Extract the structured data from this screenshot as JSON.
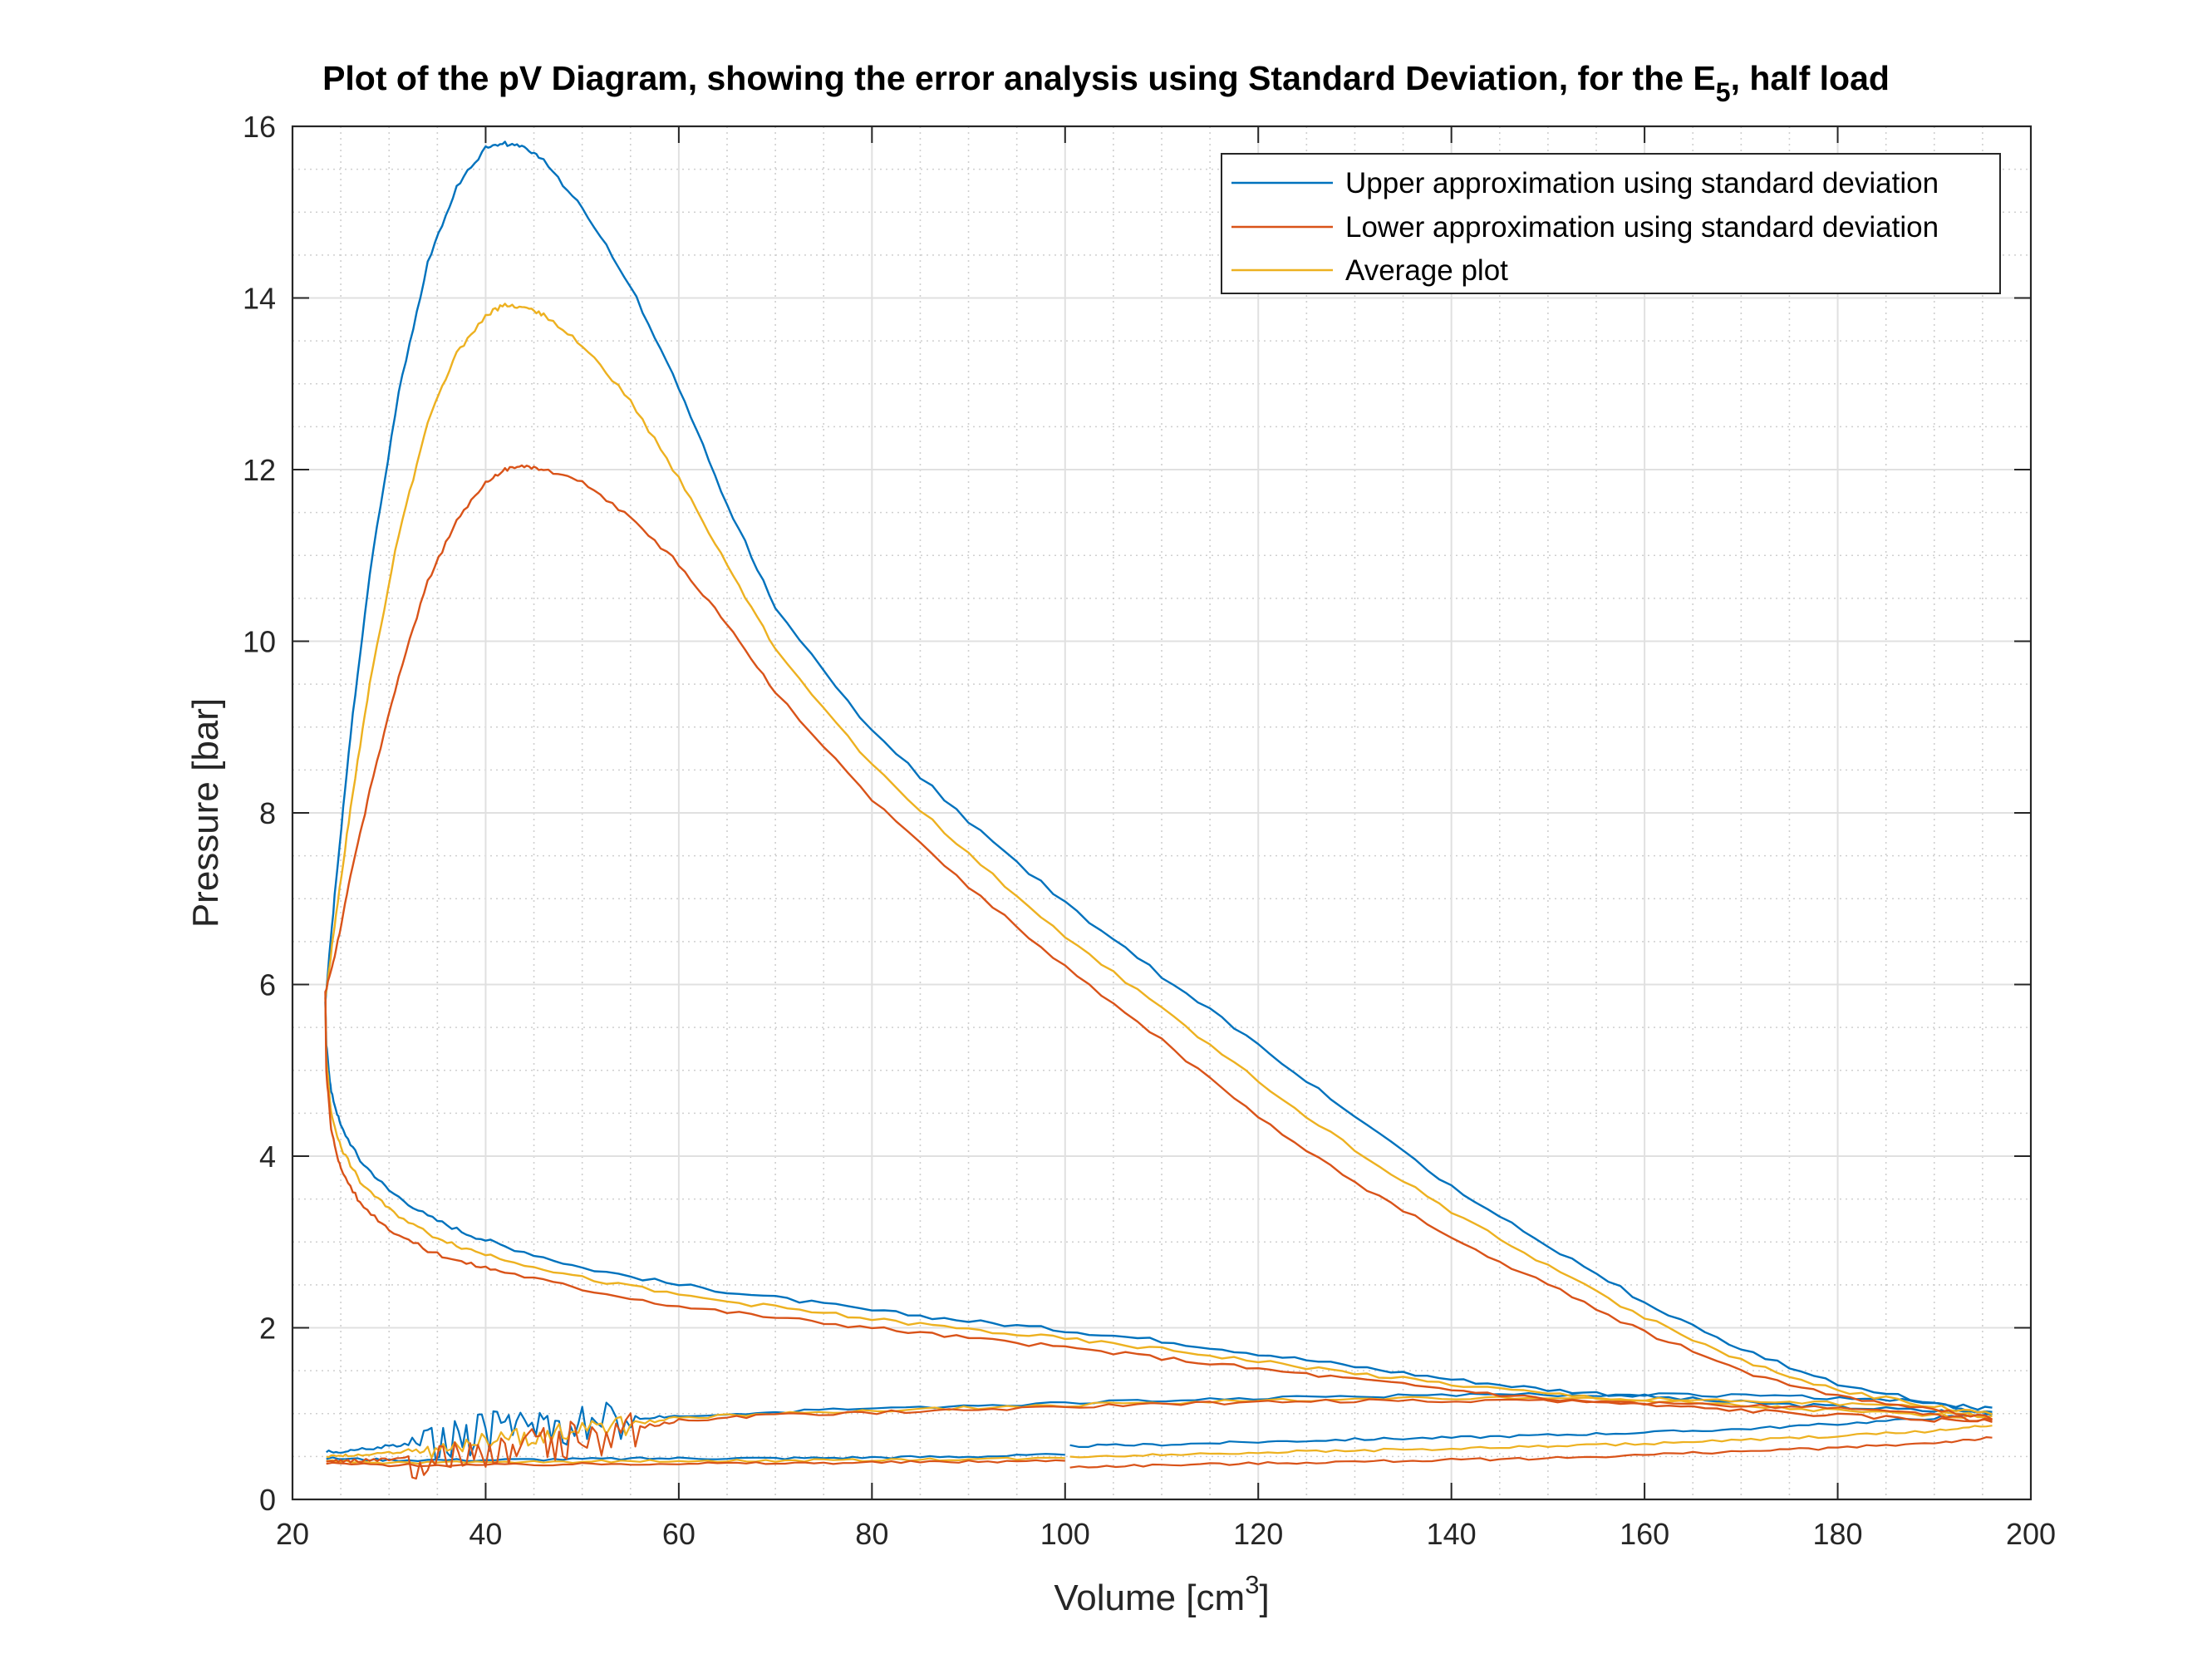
{
  "chart_data": {
    "type": "line",
    "title": "Plot of the pV Diagram, showing the error analysis using Standard Deviation, for the E",
    "title_subscript": "5",
    "title_suffix": ", half load",
    "xlabel": "Volume [cm",
    "xlabel_superscript": "3",
    "xlabel_suffix": "]",
    "ylabel": "Pressure [bar]",
    "xlim": [
      20,
      200
    ],
    "ylim": [
      0,
      16
    ],
    "xticks": [
      "20",
      "40",
      "60",
      "80",
      "100",
      "120",
      "140",
      "160",
      "180",
      "200"
    ],
    "yticks": [
      "0",
      "2",
      "4",
      "6",
      "8",
      "10",
      "12",
      "14",
      "16"
    ],
    "grid": "major and minor",
    "legend_position": "top-right",
    "series": [
      {
        "name": "Upper approximation using standard deviation",
        "color": "#0072BD",
        "top_peak": 15.8,
        "curve": [
          [
            196,
            1.05
          ],
          [
            190,
            1.12
          ],
          [
            180,
            1.35
          ],
          [
            170,
            1.75
          ],
          [
            160,
            2.3
          ],
          [
            150,
            2.95
          ],
          [
            140,
            3.65
          ],
          [
            130,
            4.45
          ],
          [
            120,
            5.3
          ],
          [
            110,
            6.1
          ],
          [
            100,
            6.95
          ],
          [
            90,
            7.9
          ],
          [
            80,
            8.95
          ],
          [
            70,
            10.4
          ],
          [
            65,
            11.6
          ],
          [
            60,
            12.95
          ],
          [
            55,
            14.15
          ],
          [
            50,
            15.05
          ],
          [
            46,
            15.6
          ],
          [
            44,
            15.75
          ],
          [
            42,
            15.8
          ],
          [
            40,
            15.75
          ],
          [
            37,
            15.3
          ],
          [
            34,
            14.4
          ],
          [
            31,
            12.9
          ],
          [
            28,
            10.8
          ],
          [
            26,
            8.9
          ],
          [
            24.5,
            7.2
          ],
          [
            23.4,
            5.8
          ],
          [
            23.5,
            5.3
          ],
          [
            24,
            4.75
          ],
          [
            25,
            4.35
          ],
          [
            27,
            3.95
          ],
          [
            30,
            3.6
          ],
          [
            34,
            3.3
          ],
          [
            38,
            3.1
          ],
          [
            42,
            2.95
          ],
          [
            50,
            2.7
          ],
          [
            60,
            2.5
          ],
          [
            70,
            2.35
          ],
          [
            80,
            2.2
          ],
          [
            90,
            2.08
          ],
          [
            100,
            1.97
          ],
          [
            110,
            1.85
          ],
          [
            120,
            1.7
          ],
          [
            130,
            1.55
          ],
          [
            140,
            1.4
          ],
          [
            150,
            1.28
          ],
          [
            160,
            1.2
          ],
          [
            170,
            1.13
          ],
          [
            180,
            1.08
          ],
          [
            190,
            1.03
          ],
          [
            196,
            1.02
          ]
        ],
        "inlet": [
          [
            196,
            1.0
          ],
          [
            188,
            1.15
          ],
          [
            175,
            1.2
          ],
          [
            160,
            1.22
          ],
          [
            145,
            1.22
          ],
          [
            130,
            1.2
          ],
          [
            115,
            1.17
          ],
          [
            100,
            1.12
          ],
          [
            85,
            1.07
          ],
          [
            70,
            1.02
          ],
          [
            60,
            0.98
          ],
          [
            55,
            0.95
          ],
          [
            50,
            0.9
          ],
          [
            46,
            0.85
          ],
          [
            42,
            0.82
          ],
          [
            38,
            0.75
          ],
          [
            34,
            0.68
          ],
          [
            30,
            0.62
          ],
          [
            26,
            0.57
          ],
          [
            23.5,
            0.55
          ]
        ],
        "exhaust": [
          [
            23.5,
            0.48
          ],
          [
            30,
            0.46
          ],
          [
            40,
            0.46
          ],
          [
            50,
            0.47
          ],
          [
            60,
            0.48
          ],
          [
            70,
            0.48
          ],
          [
            80,
            0.49
          ],
          [
            90,
            0.5
          ],
          [
            100,
            0.52
          ],
          [
            100.5,
            0.62
          ],
          [
            110,
            0.64
          ],
          [
            120,
            0.67
          ],
          [
            130,
            0.7
          ],
          [
            140,
            0.72
          ],
          [
            150,
            0.75
          ],
          [
            160,
            0.78
          ],
          [
            170,
            0.82
          ],
          [
            180,
            0.88
          ],
          [
            190,
            0.95
          ],
          [
            196,
            1.0
          ]
        ]
      },
      {
        "name": "Lower approximation using standard deviation",
        "color": "#D95319",
        "top_peak": 12.05,
        "curve": [
          [
            196,
            0.95
          ],
          [
            190,
            1.05
          ],
          [
            180,
            1.2
          ],
          [
            170,
            1.5
          ],
          [
            160,
            1.95
          ],
          [
            150,
            2.5
          ],
          [
            140,
            3.05
          ],
          [
            130,
            3.7
          ],
          [
            120,
            4.45
          ],
          [
            110,
            5.35
          ],
          [
            100,
            6.2
          ],
          [
            90,
            7.15
          ],
          [
            80,
            8.15
          ],
          [
            70,
            9.4
          ],
          [
            65,
            10.2
          ],
          [
            60,
            10.9
          ],
          [
            55,
            11.45
          ],
          [
            50,
            11.85
          ],
          [
            46,
            12.0
          ],
          [
            44,
            12.05
          ],
          [
            42,
            12.0
          ],
          [
            40,
            11.85
          ],
          [
            37,
            11.4
          ],
          [
            34,
            10.7
          ],
          [
            31,
            9.6
          ],
          [
            28,
            8.25
          ],
          [
            26,
            7.25
          ],
          [
            24.5,
            6.4
          ],
          [
            23.4,
            5.9
          ],
          [
            23.5,
            5.0
          ],
          [
            24,
            4.3
          ],
          [
            25,
            3.85
          ],
          [
            27,
            3.45
          ],
          [
            30,
            3.15
          ],
          [
            34,
            2.9
          ],
          [
            38,
            2.75
          ],
          [
            42,
            2.65
          ],
          [
            50,
            2.45
          ],
          [
            60,
            2.25
          ],
          [
            70,
            2.12
          ],
          [
            80,
            2.0
          ],
          [
            90,
            1.88
          ],
          [
            100,
            1.77
          ],
          [
            110,
            1.65
          ],
          [
            120,
            1.52
          ],
          [
            130,
            1.4
          ],
          [
            140,
            1.28
          ],
          [
            150,
            1.17
          ],
          [
            160,
            1.1
          ],
          [
            170,
            1.04
          ],
          [
            180,
            0.98
          ],
          [
            190,
            0.93
          ],
          [
            196,
            0.92
          ]
        ],
        "inlet": [
          [
            196,
            0.9
          ],
          [
            188,
            1.02
          ],
          [
            175,
            1.08
          ],
          [
            160,
            1.12
          ],
          [
            145,
            1.15
          ],
          [
            130,
            1.15
          ],
          [
            115,
            1.12
          ],
          [
            100,
            1.08
          ],
          [
            85,
            1.03
          ],
          [
            70,
            0.98
          ],
          [
            60,
            0.92
          ],
          [
            55,
            0.82
          ],
          [
            50,
            0.7
          ],
          [
            46,
            0.62
          ],
          [
            42,
            0.6
          ],
          [
            38,
            0.55
          ],
          [
            34,
            0.5
          ],
          [
            30,
            0.47
          ],
          [
            26,
            0.45
          ],
          [
            23.5,
            0.44
          ]
        ],
        "exhaust": [
          [
            23.5,
            0.42
          ],
          [
            30,
            0.4
          ],
          [
            40,
            0.4
          ],
          [
            50,
            0.41
          ],
          [
            60,
            0.42
          ],
          [
            70,
            0.42
          ],
          [
            80,
            0.43
          ],
          [
            90,
            0.44
          ],
          [
            100,
            0.45
          ],
          [
            100.5,
            0.38
          ],
          [
            110,
            0.4
          ],
          [
            120,
            0.42
          ],
          [
            130,
            0.44
          ],
          [
            140,
            0.46
          ],
          [
            150,
            0.48
          ],
          [
            160,
            0.52
          ],
          [
            170,
            0.56
          ],
          [
            180,
            0.6
          ],
          [
            190,
            0.66
          ],
          [
            196,
            0.72
          ]
        ]
      },
      {
        "name": "Average plot",
        "color": "#EDB120",
        "top_peak": 13.92,
        "curve": [
          [
            196,
            1.0
          ],
          [
            190,
            1.08
          ],
          [
            180,
            1.27
          ],
          [
            170,
            1.62
          ],
          [
            160,
            2.12
          ],
          [
            150,
            2.72
          ],
          [
            140,
            3.35
          ],
          [
            130,
            4.07
          ],
          [
            120,
            4.87
          ],
          [
            110,
            5.72
          ],
          [
            100,
            6.57
          ],
          [
            90,
            7.52
          ],
          [
            80,
            8.55
          ],
          [
            70,
            9.9
          ],
          [
            65,
            10.9
          ],
          [
            60,
            11.9
          ],
          [
            55,
            12.8
          ],
          [
            50,
            13.45
          ],
          [
            46,
            13.8
          ],
          [
            44,
            13.9
          ],
          [
            42,
            13.92
          ],
          [
            40,
            13.8
          ],
          [
            37,
            13.35
          ],
          [
            34,
            12.55
          ],
          [
            31,
            11.25
          ],
          [
            28,
            9.5
          ],
          [
            26,
            8.05
          ],
          [
            24.5,
            6.8
          ],
          [
            23.4,
            5.85
          ],
          [
            23.5,
            5.15
          ],
          [
            24,
            4.5
          ],
          [
            25,
            4.1
          ],
          [
            27,
            3.7
          ],
          [
            30,
            3.38
          ],
          [
            34,
            3.1
          ],
          [
            38,
            2.92
          ],
          [
            42,
            2.8
          ],
          [
            50,
            2.58
          ],
          [
            60,
            2.38
          ],
          [
            70,
            2.24
          ],
          [
            80,
            2.1
          ],
          [
            90,
            1.98
          ],
          [
            100,
            1.87
          ],
          [
            110,
            1.75
          ],
          [
            120,
            1.61
          ],
          [
            130,
            1.47
          ],
          [
            140,
            1.34
          ],
          [
            150,
            1.23
          ],
          [
            160,
            1.15
          ],
          [
            170,
            1.09
          ],
          [
            180,
            1.03
          ],
          [
            190,
            0.98
          ],
          [
            196,
            0.97
          ]
        ],
        "inlet": [
          [
            196,
            0.95
          ],
          [
            188,
            1.08
          ],
          [
            175,
            1.14
          ],
          [
            160,
            1.17
          ],
          [
            145,
            1.18
          ],
          [
            130,
            1.17
          ],
          [
            115,
            1.14
          ],
          [
            100,
            1.1
          ],
          [
            85,
            1.05
          ],
          [
            70,
            1.0
          ],
          [
            60,
            0.95
          ],
          [
            55,
            0.88
          ],
          [
            50,
            0.8
          ],
          [
            46,
            0.74
          ],
          [
            42,
            0.71
          ],
          [
            38,
            0.65
          ],
          [
            34,
            0.59
          ],
          [
            30,
            0.55
          ],
          [
            26,
            0.51
          ],
          [
            23.5,
            0.5
          ]
        ],
        "exhaust": [
          [
            23.5,
            0.45
          ],
          [
            30,
            0.43
          ],
          [
            40,
            0.43
          ],
          [
            50,
            0.44
          ],
          [
            60,
            0.45
          ],
          [
            70,
            0.45
          ],
          [
            80,
            0.46
          ],
          [
            90,
            0.47
          ],
          [
            100,
            0.48
          ],
          [
            100.5,
            0.5
          ],
          [
            110,
            0.52
          ],
          [
            120,
            0.55
          ],
          [
            130,
            0.57
          ],
          [
            140,
            0.59
          ],
          [
            150,
            0.62
          ],
          [
            160,
            0.65
          ],
          [
            170,
            0.69
          ],
          [
            180,
            0.74
          ],
          [
            190,
            0.8
          ],
          [
            196,
            0.86
          ]
        ]
      }
    ]
  }
}
